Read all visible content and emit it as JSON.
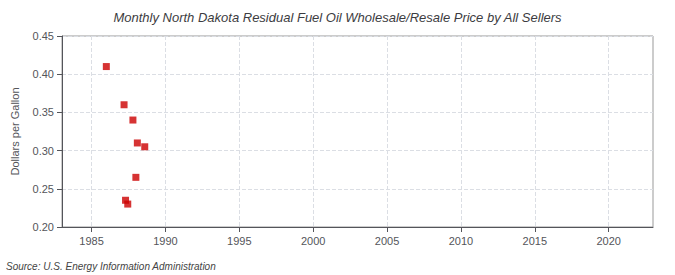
{
  "chart_data": {
    "type": "scatter",
    "title": "Monthly North Dakota Residual Fuel Oil Wholesale/Resale Price by All Sellers",
    "ylabel": "Dollars per Gallon",
    "annotations": [
      "Source: U.S. Energy Information Administration"
    ],
    "x": [
      1986.0,
      1987.2,
      1987.8,
      1988.1,
      1988.6,
      1988.0,
      1987.3,
      1987.45
    ],
    "values": [
      0.41,
      0.36,
      0.34,
      0.31,
      0.305,
      0.265,
      0.235,
      0.23
    ],
    "color": "#cc0000",
    "marker": "square",
    "xlim": [
      1983,
      2023
    ],
    "ylim": [
      0.2,
      0.45
    ],
    "xticks": [
      1985,
      1990,
      1995,
      2000,
      2005,
      2010,
      2015,
      2020
    ],
    "yticks": [
      {
        "value": 0.2,
        "label": "0.20"
      },
      0.25,
      {
        "value": 0.3,
        "label": "0.30"
      },
      0.35,
      {
        "value": 0.4,
        "label": "0.40"
      },
      0.45
    ],
    "grid": true
  }
}
